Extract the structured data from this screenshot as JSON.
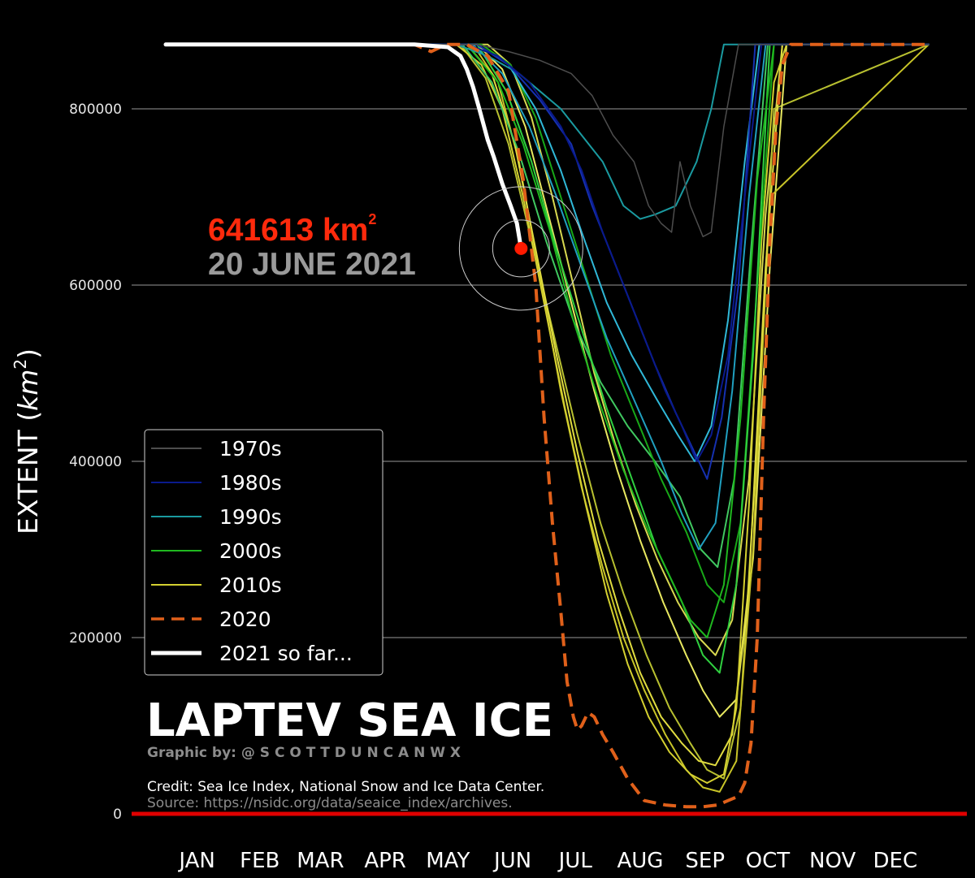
{
  "chart_data": {
    "type": "line",
    "title": "LAPTEV SEA ICE",
    "byline": "Graphic by: @ S C O T T D U N C A N W X",
    "credit": "Credit: Sea Ice Index, National Snow and Ice Data Center.",
    "source": "Source: https://nsidc.org/data/seaice_index/archives.",
    "ylabel": "EXTENT (km²)",
    "ylabel_main": "EXTENT (",
    "ylabel_unit": "km",
    "ylabel_sup": "2",
    "ylabel_close": ")",
    "ylim": [
      0,
      870000
    ],
    "yticks": [
      0,
      200000,
      400000,
      600000,
      800000
    ],
    "ytick_labels": [
      "0",
      "200000",
      "400000",
      "600000",
      "800000"
    ],
    "x_unit": "day of year",
    "xlim": [
      1,
      366
    ],
    "month_labels": [
      "JAN",
      "FEB",
      "MAR",
      "APR",
      "MAY",
      "JUN",
      "JUL",
      "AUG",
      "SEP",
      "OCT",
      "NOV",
      "DEC"
    ],
    "grid": true,
    "legend_position": "lower-left",
    "legend": [
      {
        "label": "1970s",
        "color": "#4d4d4d",
        "style": "solid"
      },
      {
        "label": "1980s",
        "color": "#0a1a8c",
        "style": "solid"
      },
      {
        "label": "1990s",
        "color": "#1a9aa0",
        "style": "solid"
      },
      {
        "label": "2000s",
        "color": "#1fb81f",
        "style": "solid"
      },
      {
        "label": "2010s",
        "color": "#d4d030",
        "style": "solid"
      },
      {
        "label": "2020",
        "color": "#e0601a",
        "style": "dashed"
      },
      {
        "label": "2021 so far...",
        "color": "#ffffff",
        "style": "solid"
      }
    ],
    "annotation": {
      "value_text": "641613 km",
      "value_sup": "2",
      "date_text": "20 JUNE 2021",
      "x": 171,
      "y": 641613,
      "marker_color": "#ff1a00"
    },
    "series": [
      {
        "name": "2021 so far...",
        "color": "#ffffff",
        "style": "solid",
        "width": 5,
        "x": [
          1,
          60,
          120,
          136,
          142,
          145,
          148,
          151,
          155,
          158,
          162,
          166,
          169,
          171
        ],
        "y": [
          873000,
          873000,
          873000,
          870000,
          860000,
          845000,
          825000,
          800000,
          765000,
          745000,
          715000,
          690000,
          670000,
          641613
        ]
      },
      {
        "name": "2020",
        "color": "#e0601a",
        "style": "dashed",
        "width": 4,
        "x": [
          1,
          120,
          128,
          135,
          145,
          155,
          165,
          172,
          178,
          182,
          186,
          190,
          193,
          196,
          198,
          200,
          203,
          206,
          210,
          215,
          222,
          230,
          240,
          250,
          258,
          265,
          270,
          275,
          278,
          281,
          284,
          287,
          290,
          293,
          296,
          300,
          305,
          366
        ],
        "y": [
          873000,
          873000,
          865000,
          873000,
          873000,
          860000,
          820000,
          720000,
          600000,
          450000,
          330000,
          230000,
          150000,
          110000,
          95000,
          100000,
          115000,
          110000,
          90000,
          70000,
          40000,
          15000,
          10000,
          8000,
          8000,
          10000,
          15000,
          20000,
          35000,
          80000,
          200000,
          450000,
          650000,
          780000,
          850000,
          873000,
          873000,
          873000
        ]
      },
      {
        "name": "1970s",
        "color": "#4d4d4d",
        "style": "solid",
        "width": 1.5,
        "x": [
          1,
          150,
          165,
          180,
          195,
          205,
          215,
          225,
          232,
          238,
          243,
          247,
          252,
          258,
          262,
          268,
          275,
          366
        ],
        "y": [
          873000,
          873000,
          865000,
          855000,
          840000,
          815000,
          770000,
          740000,
          690000,
          670000,
          660000,
          740000,
          690000,
          655000,
          660000,
          780000,
          873000,
          873000
        ]
      },
      {
        "name": "1980s",
        "color": "#0a1a8c",
        "style": "solid",
        "width": 2,
        "x": [
          1,
          145,
          160,
          175,
          190,
          200,
          210,
          220,
          230,
          240,
          248,
          255,
          262,
          270,
          278,
          286,
          366
        ],
        "y": [
          873000,
          873000,
          860000,
          830000,
          780000,
          730000,
          660000,
          600000,
          540000,
          480000,
          440000,
          400000,
          430000,
          520000,
          700000,
          873000,
          873000
        ]
      },
      {
        "name": "1980s",
        "color": "#1530b0",
        "style": "solid",
        "width": 2,
        "x": [
          1,
          150,
          165,
          180,
          195,
          205,
          215,
          225,
          235,
          245,
          252,
          260,
          267,
          275,
          283,
          366
        ],
        "y": [
          873000,
          873000,
          850000,
          810000,
          760000,
          690000,
          630000,
          570000,
          510000,
          455000,
          420000,
          380000,
          450000,
          600000,
          873000,
          873000
        ]
      },
      {
        "name": "1990s",
        "color": "#1a9aa0",
        "style": "solid",
        "width": 2,
        "x": [
          1,
          140,
          155,
          170,
          180,
          190,
          200,
          210,
          220,
          228,
          235,
          245,
          255,
          262,
          268,
          275,
          280,
          366
        ],
        "y": [
          873000,
          873000,
          860000,
          840000,
          820000,
          800000,
          770000,
          740000,
          690000,
          675000,
          680000,
          690000,
          740000,
          800000,
          873000,
          873000,
          873000,
          873000
        ]
      },
      {
        "name": "1990s",
        "color": "#30b8d8",
        "style": "solid",
        "width": 2,
        "x": [
          1,
          150,
          165,
          178,
          190,
          200,
          212,
          224,
          236,
          246,
          254,
          262,
          270,
          278,
          285,
          366
        ],
        "y": [
          873000,
          873000,
          850000,
          800000,
          730000,
          660000,
          580000,
          520000,
          470000,
          430000,
          400000,
          440000,
          560000,
          740000,
          873000,
          873000
        ]
      },
      {
        "name": "1990s",
        "color": "#20a0c0",
        "style": "solid",
        "width": 2,
        "x": [
          1,
          148,
          162,
          175,
          188,
          200,
          212,
          225,
          238,
          248,
          256,
          264,
          272,
          280,
          288,
          366
        ],
        "y": [
          873000,
          873000,
          840000,
          780000,
          700000,
          620000,
          540000,
          470000,
          400000,
          340000,
          300000,
          330000,
          480000,
          700000,
          873000,
          873000
        ]
      },
      {
        "name": "2000s",
        "color": "#1fb81f",
        "style": "solid",
        "width": 2,
        "x": [
          1,
          145,
          160,
          172,
          185,
          196,
          208,
          220,
          232,
          244,
          252,
          260,
          268,
          276,
          284,
          292,
          366
        ],
        "y": [
          873000,
          873000,
          830000,
          760000,
          660000,
          560000,
          470000,
          390000,
          320000,
          260000,
          220000,
          200000,
          260000,
          450000,
          720000,
          873000,
          873000
        ]
      },
      {
        "name": "2000s",
        "color": "#30d040",
        "style": "solid",
        "width": 2,
        "x": [
          1,
          150,
          164,
          176,
          188,
          200,
          212,
          224,
          236,
          248,
          258,
          266,
          274,
          282,
          290,
          366
        ],
        "y": [
          873000,
          873000,
          820000,
          740000,
          640000,
          550000,
          460000,
          380000,
          300000,
          240000,
          180000,
          160000,
          260000,
          520000,
          873000,
          873000
        ]
      },
      {
        "name": "2000s",
        "color": "#18a818",
        "style": "solid",
        "width": 2,
        "x": [
          1,
          152,
          166,
          178,
          190,
          202,
          214,
          226,
          238,
          250,
          260,
          268,
          276,
          284,
          292,
          366
        ],
        "y": [
          873000,
          873000,
          850000,
          790000,
          700000,
          610000,
          520000,
          450000,
          380000,
          320000,
          260000,
          240000,
          330000,
          600000,
          873000,
          873000
        ]
      },
      {
        "name": "2000s",
        "color": "#40c860",
        "style": "solid",
        "width": 2,
        "x": [
          1,
          143,
          157,
          170,
          183,
          196,
          209,
          222,
          235,
          247,
          257,
          265,
          273,
          281,
          289,
          366
        ],
        "y": [
          873000,
          873000,
          830000,
          750000,
          650000,
          560000,
          490000,
          440000,
          400000,
          360000,
          300000,
          280000,
          380000,
          640000,
          873000,
          873000
        ]
      },
      {
        "name": "2010s",
        "color": "#d4d030",
        "style": "solid",
        "width": 2,
        "x": [
          1,
          140,
          152,
          162,
          172,
          182,
          192,
          202,
          212,
          222,
          232,
          242,
          252,
          260,
          268,
          274,
          280,
          286,
          292,
          298,
          366
        ],
        "y": [
          873000,
          873000,
          850000,
          800000,
          700000,
          580000,
          460000,
          350000,
          250000,
          170000,
          110000,
          70000,
          45000,
          35000,
          45000,
          120000,
          350000,
          650000,
          830000,
          873000,
          873000
        ]
      },
      {
        "name": "2010s",
        "color": "#e0dc40",
        "style": "solid",
        "width": 2,
        "x": [
          1,
          145,
          157,
          168,
          178,
          188,
          198,
          208,
          218,
          228,
          238,
          248,
          256,
          264,
          272,
          280,
          288,
          296,
          366
        ],
        "y": [
          873000,
          873000,
          840000,
          760000,
          640000,
          520000,
          410000,
          310000,
          230000,
          160000,
          110000,
          80000,
          60000,
          55000,
          90000,
          260000,
          620000,
          873000,
          873000
        ]
      },
      {
        "name": "2010s",
        "color": "#c8c428",
        "style": "solid",
        "width": 2,
        "x": [
          1,
          148,
          160,
          170,
          180,
          190,
          200,
          210,
          220,
          230,
          240,
          250,
          258,
          266,
          274,
          282,
          290,
          366
        ],
        "y": [
          873000,
          873000,
          830000,
          740000,
          610000,
          480000,
          370000,
          280000,
          200000,
          140000,
          90000,
          50000,
          30000,
          25000,
          60000,
          300000,
          700000,
          873000
        ]
      },
      {
        "name": "2010s",
        "color": "#e8e860",
        "style": "solid",
        "width": 2,
        "x": [
          1,
          150,
          162,
          173,
          184,
          195,
          206,
          217,
          228,
          239,
          250,
          258,
          266,
          274,
          282,
          290,
          298,
          366
        ],
        "y": [
          873000,
          873000,
          845000,
          780000,
          680000,
          580000,
          480000,
          390000,
          310000,
          240000,
          180000,
          140000,
          110000,
          130000,
          290000,
          620000,
          873000,
          873000
        ]
      },
      {
        "name": "2010s",
        "color": "#b8c030",
        "style": "solid",
        "width": 2,
        "x": [
          1,
          142,
          154,
          165,
          176,
          187,
          198,
          209,
          220,
          231,
          242,
          252,
          260,
          268,
          276,
          284,
          292,
          366
        ],
        "y": [
          873000,
          873000,
          835000,
          760000,
          650000,
          540000,
          430000,
          330000,
          250000,
          180000,
          120000,
          80000,
          50000,
          40000,
          120000,
          420000,
          800000,
          873000
        ]
      },
      {
        "name": "2010s",
        "color": "#d8d850",
        "style": "solid",
        "width": 2,
        "x": [
          1,
          155,
          166,
          176,
          186,
          196,
          206,
          216,
          226,
          236,
          246,
          256,
          264,
          272,
          280,
          288,
          296,
          366
        ],
        "y": [
          873000,
          873000,
          850000,
          790000,
          700000,
          600000,
          500000,
          420000,
          350000,
          290000,
          240000,
          200000,
          180000,
          220000,
          380000,
          680000,
          873000,
          873000
        ]
      }
    ]
  }
}
